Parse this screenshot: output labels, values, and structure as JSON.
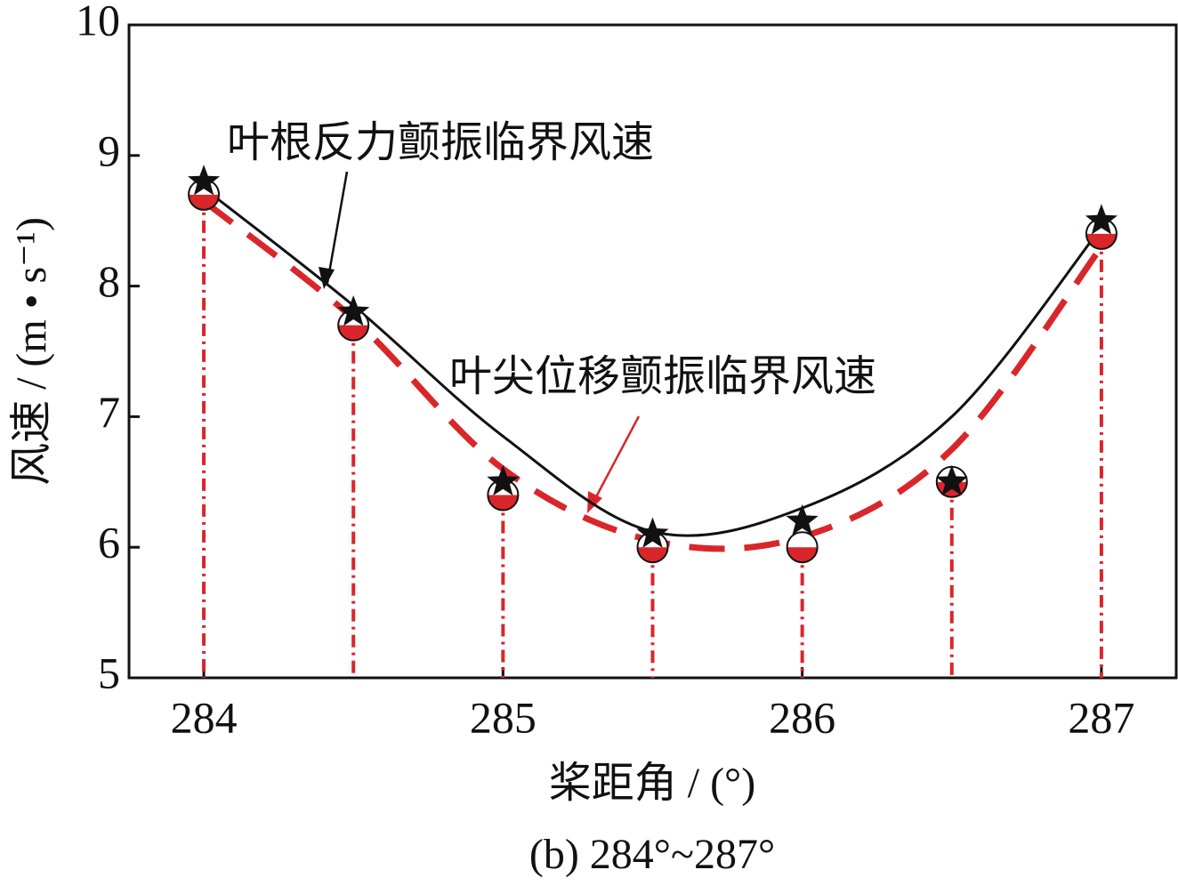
{
  "chart_data": {
    "type": "line",
    "title": "(b) 284°~287°",
    "xlabel": "桨距角 / (°)",
    "ylabel": "风速 / (m • s⁻¹)",
    "x": [
      284,
      284.5,
      285,
      285.5,
      286,
      286.5,
      287
    ],
    "series": [
      {
        "name": "叶根反力颤振临界风速",
        "color": "#111111",
        "marker": "star",
        "values": [
          8.8,
          7.8,
          6.5,
          6.1,
          6.2,
          6.5,
          8.5
        ],
        "fit": [
          8.75,
          7.85,
          6.85,
          6.12,
          6.3,
          7.0,
          8.45
        ]
      },
      {
        "name": "叶尖位移颤振临界风速",
        "color": "#d9262b",
        "marker": "circle",
        "values": [
          8.7,
          7.7,
          6.4,
          6.0,
          6.0,
          6.5,
          8.4
        ],
        "fit": [
          8.65,
          7.75,
          6.6,
          6.05,
          6.08,
          6.75,
          8.3
        ]
      }
    ],
    "xlim": [
      283.75,
      287.25
    ],
    "ylim": [
      5,
      10
    ],
    "xticks": [
      284,
      285,
      286,
      287
    ],
    "yticks": [
      5,
      6,
      7,
      8,
      9,
      10
    ]
  }
}
